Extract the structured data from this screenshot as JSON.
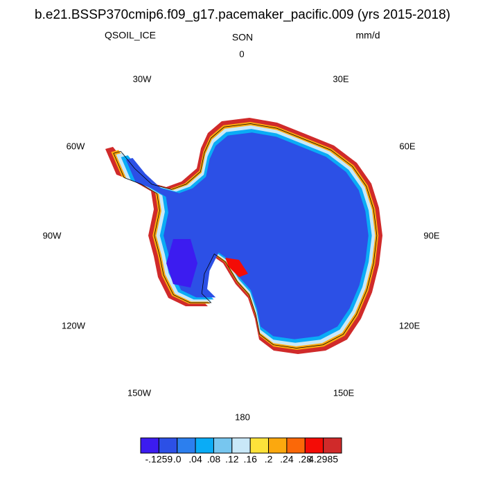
{
  "header": {
    "title": "b.e21.BSSP370cmip6.f09_g17.pacemaker_pacific.009 (yrs 2015-2018)",
    "left": "QSOIL_ICE",
    "center": "SON",
    "right": "mm/d"
  },
  "map": {
    "lon_labels": [
      "0",
      "30E",
      "60E",
      "90E",
      "120E",
      "150E",
      "180",
      "150W",
      "120W",
      "90W",
      "60W",
      "30W"
    ]
  },
  "colorbar": {
    "colors": [
      "#3c1cf0",
      "#2c50e6",
      "#2c7fee",
      "#0aacf6",
      "#77c6ef",
      "#c9e8f8",
      "#fde23a",
      "#fca80e",
      "#fb6808",
      "#f40c06",
      "#d02a2a"
    ],
    "labels": [
      "-.1259",
      ".0",
      ".04",
      ".08",
      ".12",
      ".16",
      ".2",
      ".24",
      ".28",
      "4.2985"
    ]
  }
}
